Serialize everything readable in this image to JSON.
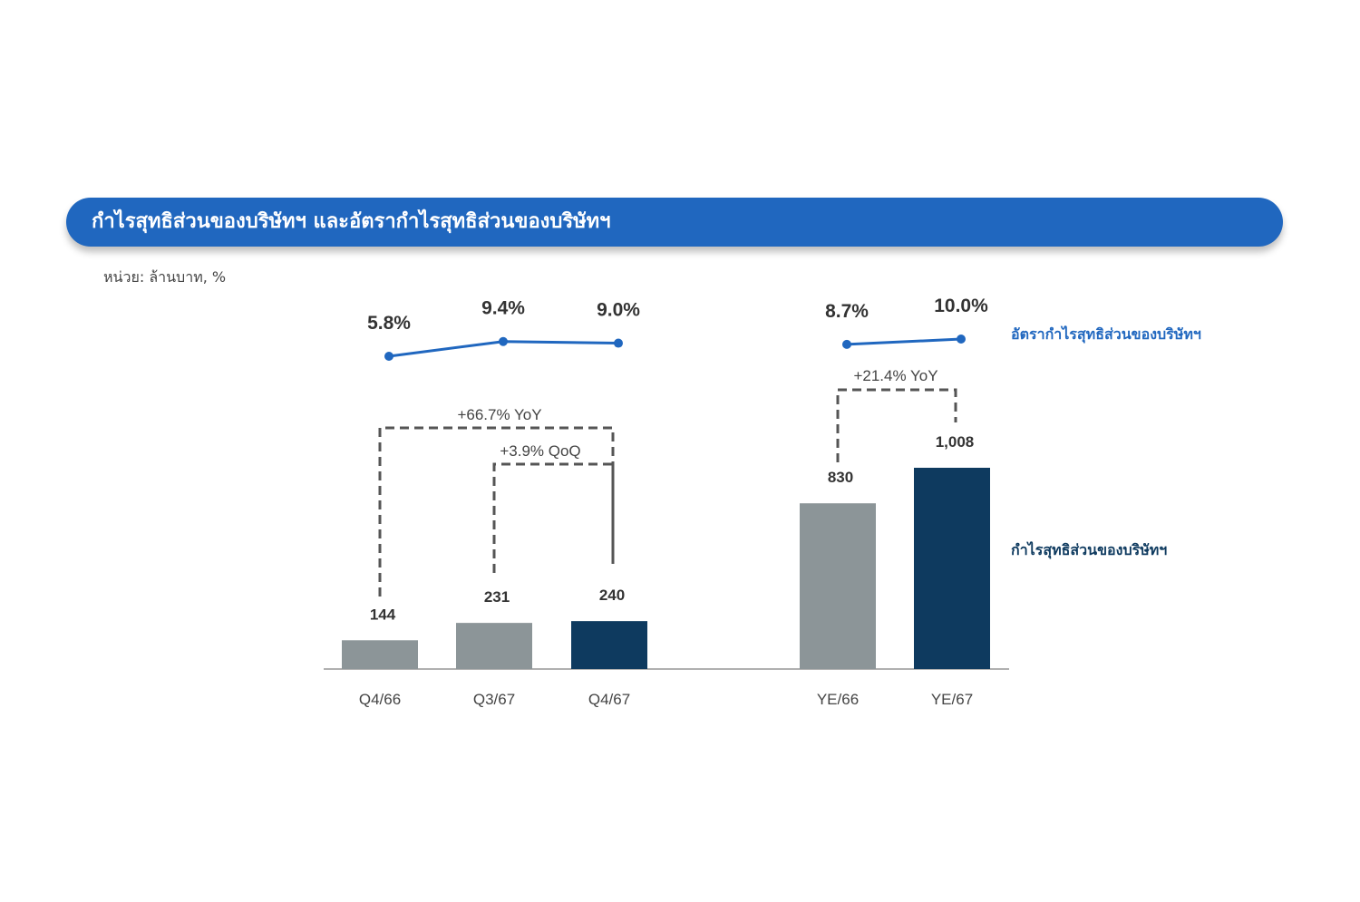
{
  "header": {
    "title": "กำไรสุทธิส่วนของบริษัทฯ และอัตรากำไรสุทธิส่วนของบริษัทฯ"
  },
  "unit_label": "หน่วย: ล้านบาท, %",
  "colors": {
    "header_bg": "#2067bf",
    "bar_prior": "#8c9598",
    "bar_current": "#0e3a5f",
    "line": "#2067bf"
  },
  "chart_data": {
    "type": "bar",
    "categories": [
      "Q4/66",
      "Q3/67",
      "Q4/67",
      "YE/66",
      "YE/67"
    ],
    "groups": [
      {
        "categories": [
          "Q4/66",
          "Q3/67",
          "Q4/67"
        ]
      },
      {
        "categories": [
          "YE/66",
          "YE/67"
        ]
      }
    ],
    "series": [
      {
        "name": "กำไรสุทธิส่วนของบริษัทฯ",
        "type": "bar",
        "values": [
          144,
          231,
          240,
          830,
          1008
        ],
        "value_labels": [
          "144",
          "231",
          "240",
          "830",
          "1,008"
        ],
        "highlight": [
          false,
          false,
          true,
          false,
          true
        ]
      },
      {
        "name": "อัตรากำไรสุทธิส่วนของบริษัทฯ",
        "type": "line",
        "values": [
          5.8,
          9.4,
          9.0,
          8.7,
          10.0
        ],
        "value_labels": [
          "5.8%",
          "9.4%",
          "9.0%",
          "8.7%",
          "10.0%"
        ]
      }
    ],
    "annotations": [
      {
        "text": "+66.7% YoY",
        "from": "Q4/66",
        "to": "Q4/67"
      },
      {
        "text": "+3.9% QoQ",
        "from": "Q3/67",
        "to": "Q4/67"
      },
      {
        "text": "+21.4%  YoY",
        "from": "YE/66",
        "to": "YE/67"
      }
    ],
    "legend_placement": "right",
    "grid": false
  }
}
